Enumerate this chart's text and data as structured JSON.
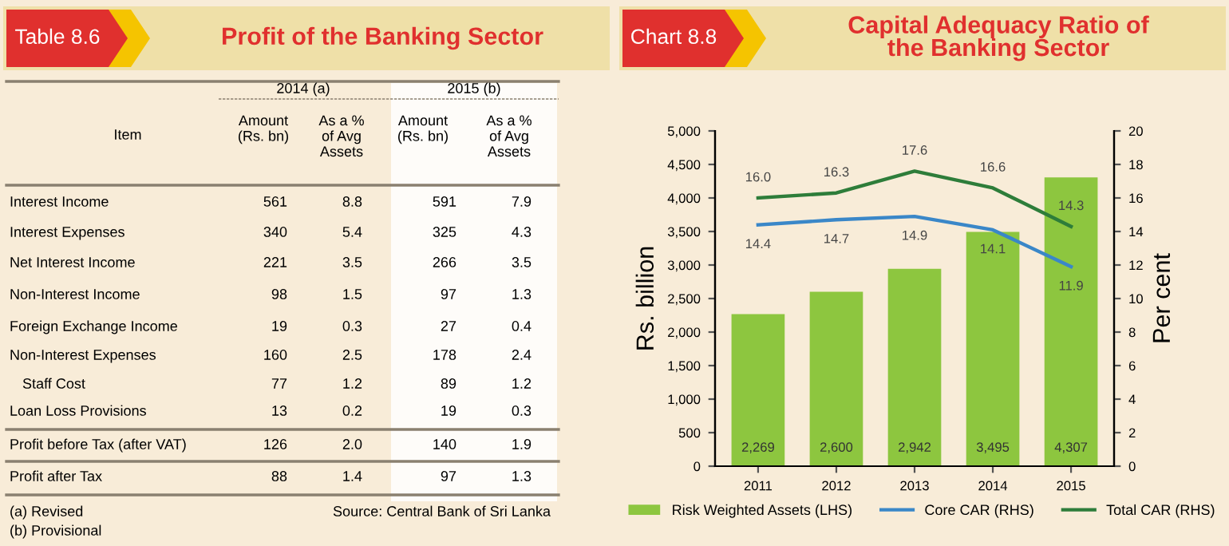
{
  "chart_data": [
    {
      "type": "other",
      "title": "Profit of the Banking Sector",
      "annotations": [
        "Table 8.6",
        "Item",
        "2014 (a)",
        "2015 (b)",
        "Amount (Rs. bn)",
        "As a % of Avg Assets",
        "Amount (Rs. bn)",
        "As a % of Avg Assets",
        "(a) Revised",
        "(b) Provisional",
        "Source: Central Bank of Sri Lanka"
      ],
      "categories": [
        "Interest Income",
        "Interest Expenses",
        "Net Interest Income",
        "Non-Interest Income",
        "Foreign Exchange Income",
        "Non-Interest Expenses",
        "Staff Cost",
        "Loan Loss Provisions",
        "Profit before Tax (after VAT)",
        "Profit after Tax"
      ],
      "series": [
        {
          "values": [
            561,
            340,
            221,
            98,
            19,
            160,
            77,
            13,
            126,
            88
          ]
        },
        {
          "values": [
            8.8,
            5.4,
            3.5,
            1.5,
            0.3,
            2.5,
            1.2,
            0.2,
            2.0,
            1.4
          ],
          "value_labels": [
            "8.8",
            "5.4",
            "3.5",
            "1.5",
            "0.3",
            "2.5",
            "1.2",
            "0.2",
            "2.0",
            "1.4"
          ]
        },
        {
          "values": [
            591,
            325,
            266,
            97,
            27,
            178,
            89,
            19,
            140,
            97
          ]
        },
        {
          "values": [
            7.9,
            4.3,
            3.5,
            1.3,
            0.4,
            2.4,
            1.2,
            0.3,
            1.9,
            1.3
          ]
        }
      ],
      "data_labels": true
    },
    {
      "type": "bar",
      "title": "Capital Adequacy Ratio of the Banking Sector",
      "annotations": [
        "Chart 8.8"
      ],
      "categories": [
        "2011",
        "2012",
        "2013",
        "2014",
        "2015"
      ],
      "ylabel": "Rs. billion",
      "y2label": "Per cent",
      "ylim": [
        0,
        5000
      ],
      "yticks": [
        0,
        {
          "value": 500,
          "label": "500"
        },
        {
          "value": 1000,
          "label": "1,000"
        },
        {
          "value": 1500,
          "label": "1,500"
        },
        {
          "value": 2000,
          "label": "2,000"
        },
        {
          "value": 2500,
          "label": "2,500"
        },
        {
          "value": 3000,
          "label": "3,000"
        },
        {
          "value": 3500,
          "label": "3,500"
        },
        {
          "value": 4000,
          "label": "4,000"
        },
        {
          "value": 4500,
          "label": "4,500"
        },
        {
          "value": 5000,
          "label": "5,000"
        }
      ],
      "y2lim": [
        0,
        20
      ],
      "y2ticks": [
        0,
        2,
        4,
        6,
        8,
        10,
        12,
        14,
        16,
        18,
        20
      ],
      "series": [
        {
          "name": "Risk Weighted Assets (LHS)",
          "type": "bar",
          "color": "#8dc63f",
          "values": [
            2269,
            2600,
            2942,
            3495,
            4307
          ],
          "value_labels": [
            "2,269",
            "2,600",
            "2,942",
            "3,495",
            "4,307"
          ]
        },
        {
          "name": "Core CAR (RHS)",
          "type": "line",
          "axis": "y2",
          "color": "#3a87c8",
          "values": [
            14.4,
            14.7,
            14.9,
            14.1,
            11.9
          ],
          "value_labels": [
            "14.4",
            "14.7",
            "14.9",
            "14.1",
            "11.9"
          ]
        },
        {
          "name": "Total CAR (RHS)",
          "type": "line",
          "axis": "y2",
          "color": "#2e7d3a",
          "values": [
            16.0,
            16.3,
            17.6,
            16.6,
            14.3
          ],
          "value_labels": [
            "16.0",
            "16.3",
            "17.6",
            "16.6",
            "14.3"
          ]
        }
      ],
      "legend": "bottom",
      "grid": false
    }
  ]
}
